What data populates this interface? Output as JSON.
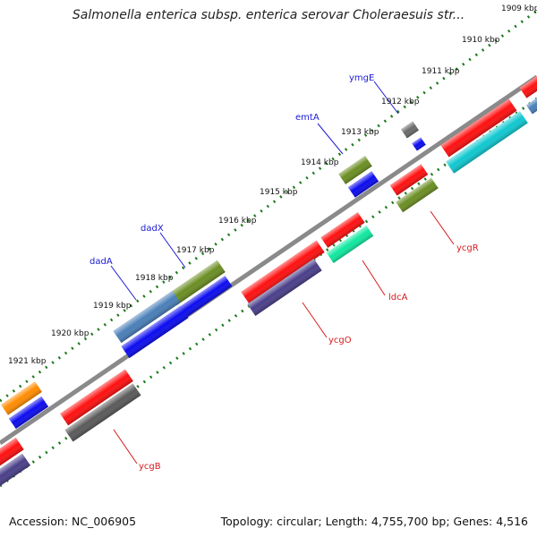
{
  "title": "Salmonella enterica subsp. enterica serovar Choleraesuis str...",
  "footer": {
    "accession": "Accession: NC_006905",
    "topology": "Topology: circular; Length: 4,755,700 bp; Genes: 4,516"
  },
  "ticks": [
    "1909 kbp",
    "1910 kbp",
    "1911 kbp",
    "1912 kbp",
    "1913 kbp",
    "1914 kbp",
    "1915 kbp",
    "1916 kbp",
    "1917 kbp",
    "1918 kbp",
    "1919 kbp",
    "1920 kbp",
    "1921 kbp"
  ],
  "gene_labels": {
    "forward": [
      "ymgE",
      "emtA",
      "dadX",
      "dadA"
    ],
    "reverse": [
      "ycgR",
      "ldcA",
      "ycgO",
      "ycgB"
    ]
  },
  "colors": {
    "forward_label": "#1a1ad6",
    "reverse_label": "#d61a1a",
    "tick": "#1a7a1a",
    "backbone": "#8a8a8a"
  }
}
